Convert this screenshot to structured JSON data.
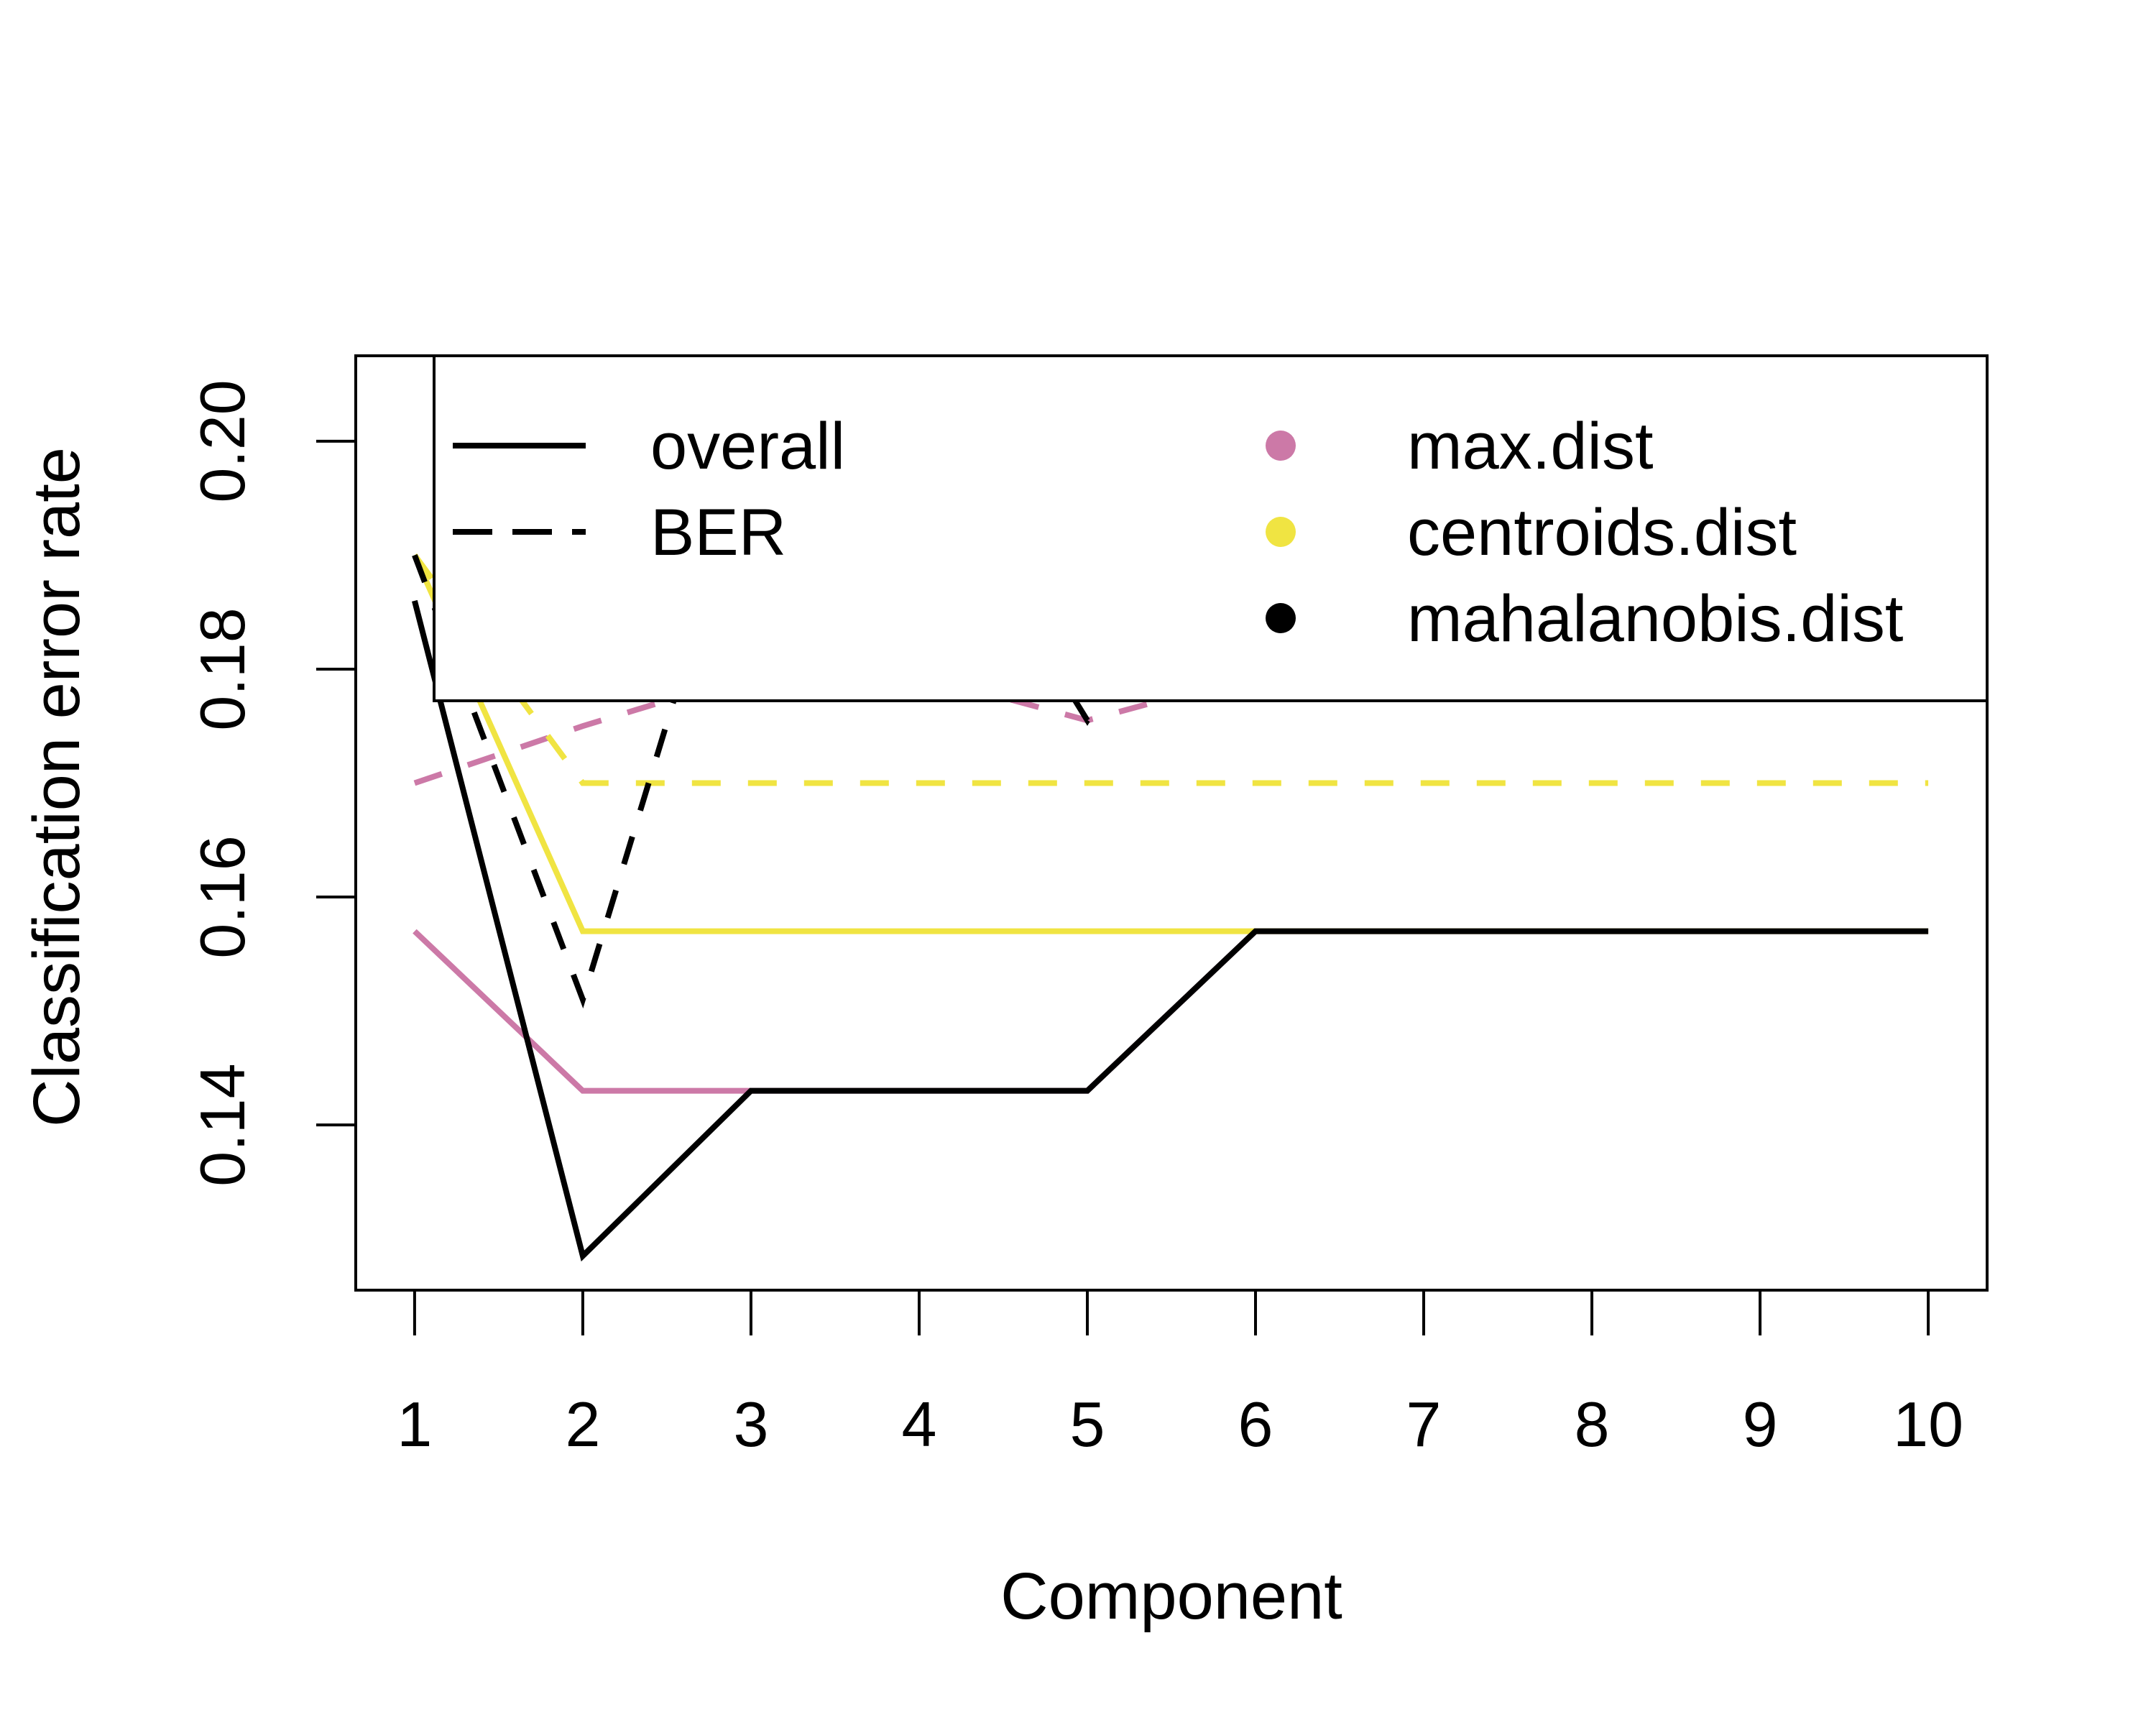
{
  "chart_data": {
    "type": "line",
    "title": "",
    "xlabel": "Component",
    "ylabel": "Classification error rate",
    "x": [
      1,
      2,
      3,
      4,
      5,
      6,
      7,
      8,
      9,
      10
    ],
    "xlim": [
      0.65,
      10.35
    ],
    "ylim": [
      0.1255,
      0.2075
    ],
    "x_ticks": [
      "1",
      "2",
      "3",
      "4",
      "5",
      "6",
      "7",
      "8",
      "9",
      "10"
    ],
    "y_ticks": [
      "0.14",
      "0.16",
      "0.18",
      "0.20"
    ],
    "grid": false,
    "legend_position": "top-right",
    "series": [
      {
        "measure": "overall",
        "distance": "max.dist",
        "color": "#CC79A7",
        "style": "solid",
        "values": [
          0.157,
          0.143,
          0.143,
          0.143,
          0.143,
          0.157,
          0.157,
          0.157,
          0.157,
          0.157
        ]
      },
      {
        "measure": "BER",
        "distance": "max.dist",
        "color": "#CC79A7",
        "style": "dashed",
        "values": [
          0.17,
          0.175,
          0.1795,
          0.1795,
          0.1755,
          0.1795,
          0.1795,
          0.1795,
          0.1795,
          0.1795
        ]
      },
      {
        "measure": "overall",
        "distance": "centroids.dist",
        "color": "#F0E442",
        "style": "solid",
        "values": [
          0.19,
          0.157,
          0.157,
          0.157,
          0.157,
          0.157,
          0.157,
          0.157,
          0.157,
          0.157
        ]
      },
      {
        "measure": "BER",
        "distance": "centroids.dist",
        "color": "#F0E442",
        "style": "dashed",
        "values": [
          0.19,
          0.17,
          0.17,
          0.17,
          0.17,
          0.17,
          0.17,
          0.17,
          0.17,
          0.17
        ]
      },
      {
        "measure": "overall",
        "distance": "mahalanobis.dist",
        "color": "#000000",
        "style": "solid",
        "values": [
          0.186,
          0.1285,
          0.143,
          0.143,
          0.143,
          0.157,
          0.157,
          0.157,
          0.157,
          0.157
        ]
      },
      {
        "measure": "BER",
        "distance": "mahalanobis.dist",
        "color": "#000000",
        "style": "dashed",
        "values": [
          0.19,
          0.151,
          0.1995,
          0.1995,
          0.1755,
          0.1995,
          0.1995,
          0.1995,
          0.1995,
          0.1995
        ]
      }
    ],
    "legend": {
      "lines": [
        {
          "label": "overall",
          "style": "solid"
        },
        {
          "label": "BER",
          "style": "dashed"
        }
      ],
      "points": [
        {
          "label": "max.dist",
          "color": "#CC79A7"
        },
        {
          "label": "centroids.dist",
          "color": "#F0E442"
        },
        {
          "label": "mahalanobis.dist",
          "color": "#000000"
        }
      ]
    }
  }
}
